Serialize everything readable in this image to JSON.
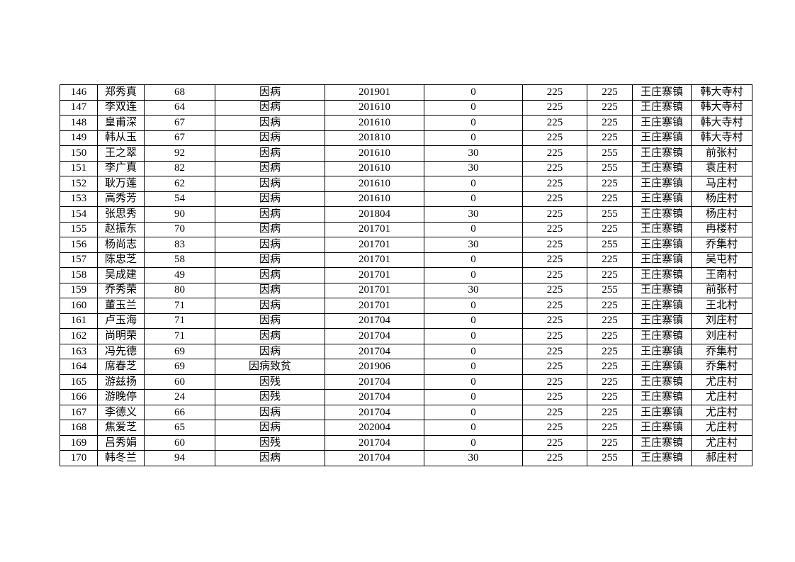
{
  "page": {
    "background_color": "#ffffff",
    "text_color": "#000000",
    "grid_color": "#000000"
  },
  "table": {
    "rows": [
      [
        "146",
        "郑秀真",
        "68",
        "因病",
        "201901",
        "0",
        "225",
        "225",
        "王庄寨镇",
        "韩大寺村"
      ],
      [
        "147",
        "李双连",
        "64",
        "因病",
        "201610",
        "0",
        "225",
        "225",
        "王庄寨镇",
        "韩大寺村"
      ],
      [
        "148",
        "皇甫深",
        "67",
        "因病",
        "201610",
        "0",
        "225",
        "225",
        "王庄寨镇",
        "韩大寺村"
      ],
      [
        "149",
        "韩从玉",
        "67",
        "因病",
        "201810",
        "0",
        "225",
        "225",
        "王庄寨镇",
        "韩大寺村"
      ],
      [
        "150",
        "王之翠",
        "92",
        "因病",
        "201610",
        "30",
        "225",
        "255",
        "王庄寨镇",
        "前张村"
      ],
      [
        "151",
        "李广真",
        "82",
        "因病",
        "201610",
        "30",
        "225",
        "255",
        "王庄寨镇",
        "袁庄村"
      ],
      [
        "152",
        "耿万莲",
        "62",
        "因病",
        "201610",
        "0",
        "225",
        "225",
        "王庄寨镇",
        "马庄村"
      ],
      [
        "153",
        "高秀芳",
        "54",
        "因病",
        "201610",
        "0",
        "225",
        "225",
        "王庄寨镇",
        "杨庄村"
      ],
      [
        "154",
        "张思秀",
        "90",
        "因病",
        "201804",
        "30",
        "225",
        "255",
        "王庄寨镇",
        "杨庄村"
      ],
      [
        "155",
        "赵振东",
        "70",
        "因病",
        "201701",
        "0",
        "225",
        "225",
        "王庄寨镇",
        "冉楼村"
      ],
      [
        "156",
        "杨尚志",
        "83",
        "因病",
        "201701",
        "30",
        "225",
        "255",
        "王庄寨镇",
        "乔集村"
      ],
      [
        "157",
        "陈忠芝",
        "58",
        "因病",
        "201701",
        "0",
        "225",
        "225",
        "王庄寨镇",
        "吴屯村"
      ],
      [
        "158",
        "吴成建",
        "49",
        "因病",
        "201701",
        "0",
        "225",
        "225",
        "王庄寨镇",
        "王南村"
      ],
      [
        "159",
        "乔秀荣",
        "80",
        "因病",
        "201701",
        "30",
        "225",
        "255",
        "王庄寨镇",
        "前张村"
      ],
      [
        "160",
        "董玉兰",
        "71",
        "因病",
        "201701",
        "0",
        "225",
        "225",
        "王庄寨镇",
        "王北村"
      ],
      [
        "161",
        "卢玉海",
        "71",
        "因病",
        "201704",
        "0",
        "225",
        "225",
        "王庄寨镇",
        "刘庄村"
      ],
      [
        "162",
        "尚明荣",
        "71",
        "因病",
        "201704",
        "0",
        "225",
        "225",
        "王庄寨镇",
        "刘庄村"
      ],
      [
        "163",
        "冯先德",
        "69",
        "因病",
        "201704",
        "0",
        "225",
        "225",
        "王庄寨镇",
        "乔集村"
      ],
      [
        "164",
        "席春芝",
        "69",
        "因病致贫",
        "201906",
        "0",
        "225",
        "225",
        "王庄寨镇",
        "乔集村"
      ],
      [
        "165",
        "游兹扬",
        "60",
        "因残",
        "201704",
        "0",
        "225",
        "225",
        "王庄寨镇",
        "尤庄村"
      ],
      [
        "166",
        "游晚停",
        "24",
        "因残",
        "201704",
        "0",
        "225",
        "225",
        "王庄寨镇",
        "尤庄村"
      ],
      [
        "167",
        "李德义",
        "66",
        "因病",
        "201704",
        "0",
        "225",
        "225",
        "王庄寨镇",
        "尤庄村"
      ],
      [
        "168",
        "焦爱芝",
        "65",
        "因病",
        "202004",
        "0",
        "225",
        "225",
        "王庄寨镇",
        "尤庄村"
      ],
      [
        "169",
        "吕秀娟",
        "60",
        "因残",
        "201704",
        "0",
        "225",
        "225",
        "王庄寨镇",
        "尤庄村"
      ],
      [
        "170",
        "韩冬兰",
        "94",
        "因病",
        "201704",
        "30",
        "225",
        "255",
        "王庄寨镇",
        "郝庄村"
      ]
    ]
  }
}
